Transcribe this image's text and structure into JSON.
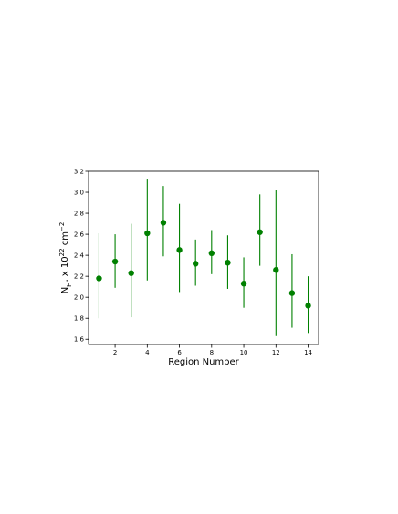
{
  "chart_data": {
    "type": "errorbar",
    "xlabel": "Region Number",
    "ylabel": [
      {
        "text": "N",
        "shift": null
      },
      {
        "text": "H",
        "shift": "sub"
      },
      {
        "text": ", x 10",
        "shift": null
      },
      {
        "text": "22",
        "shift": "super"
      },
      {
        "text": " cm",
        "shift": null
      },
      {
        "text": "−2",
        "shift": "super"
      }
    ],
    "color": "#008000",
    "x": [
      1,
      2,
      3,
      4,
      5,
      6,
      7,
      8,
      9,
      10,
      11,
      12,
      13,
      14
    ],
    "values": [
      2.18,
      2.34,
      2.23,
      2.61,
      2.71,
      2.45,
      2.32,
      2.42,
      2.33,
      2.13,
      2.62,
      2.26,
      2.04,
      1.92
    ],
    "yerr_minus": [
      0.38,
      0.25,
      0.42,
      0.45,
      0.32,
      0.4,
      0.21,
      0.2,
      0.25,
      0.23,
      0.32,
      0.63,
      0.33,
      0.26
    ],
    "yerr_plus": [
      0.43,
      0.26,
      0.47,
      0.52,
      0.35,
      0.44,
      0.23,
      0.22,
      0.26,
      0.25,
      0.36,
      0.76,
      0.37,
      0.28
    ],
    "xlim": [
      0.35,
      14.65
    ],
    "ylim": [
      1.55,
      3.2
    ],
    "xticks": [
      2,
      4,
      6,
      8,
      10,
      12,
      14
    ],
    "yticks": [
      1.6,
      1.8,
      {
        "value": 2,
        "label": "2.0"
      },
      2.2,
      2.4,
      2.6,
      2.8,
      {
        "value": 3,
        "label": "3.0"
      },
      3.2
    ],
    "grid": false
  }
}
